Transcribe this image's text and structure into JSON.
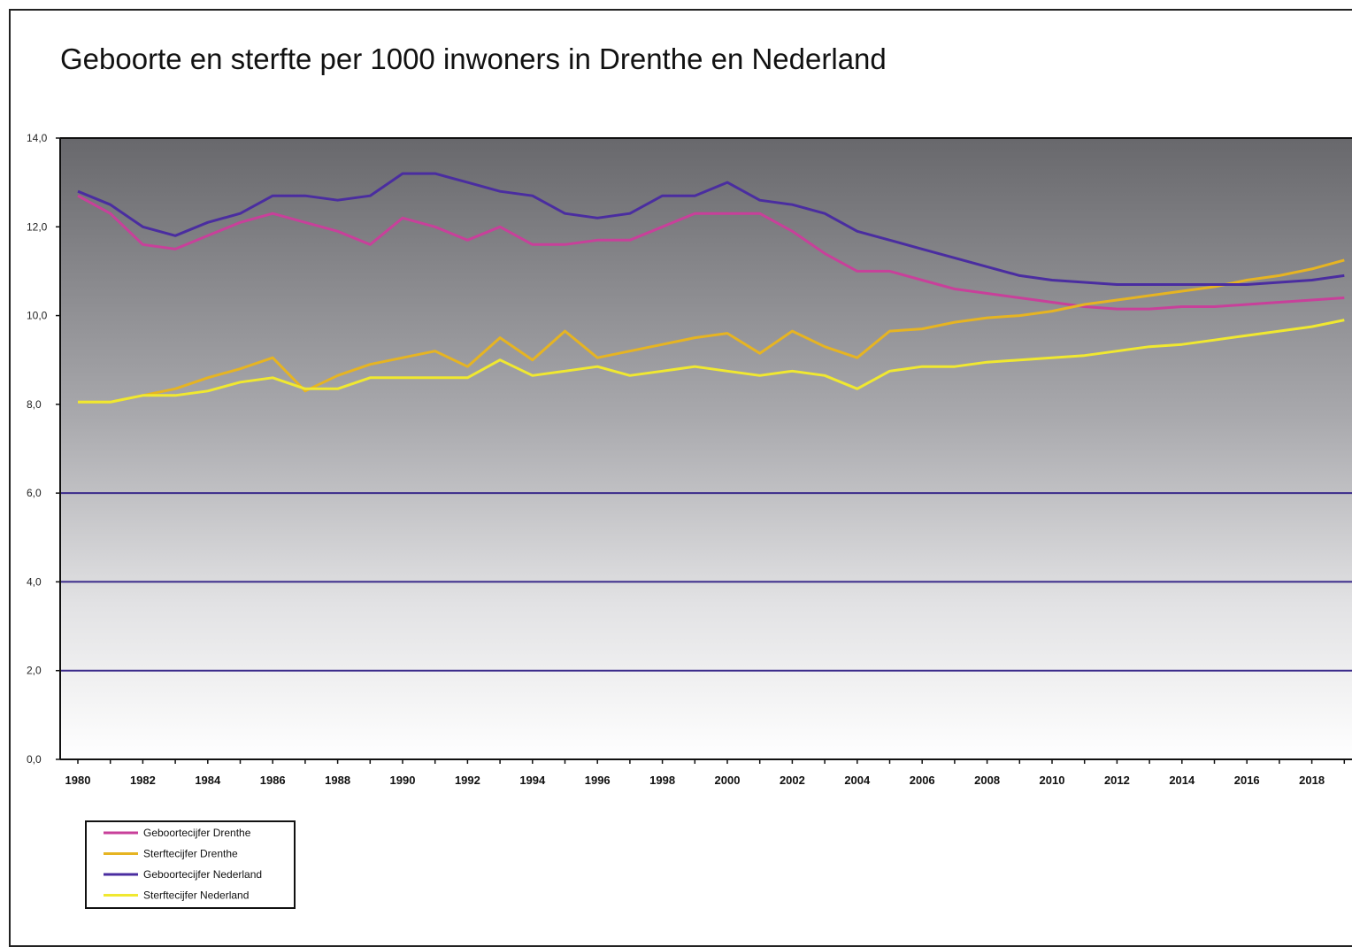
{
  "chart_data": {
    "type": "line",
    "title": "Geboorte en sterfte per 1000 inwoners in Drenthe en Nederland",
    "xlabel": "",
    "ylabel": "",
    "ylim": [
      0,
      14
    ],
    "xlim": [
      1980,
      2019
    ],
    "y_ticks": [
      "0,0",
      "2,0",
      "4,0",
      "6,0",
      "8,0",
      "10,0",
      "12,0",
      "14,0"
    ],
    "y_tick_values": [
      0,
      2,
      4,
      6,
      8,
      10,
      12,
      14
    ],
    "x_tick_labels": [
      "1980",
      "1982",
      "1984",
      "1986",
      "1988",
      "1990",
      "1992",
      "1994",
      "1996",
      "1998",
      "2000",
      "2002",
      "2004",
      "2006",
      "2008",
      "2010",
      "2012",
      "2014",
      "2016",
      "2018"
    ],
    "gridlines_y": [
      2,
      4,
      6
    ],
    "legend_position": "bottom-left",
    "x": [
      1980,
      1981,
      1982,
      1983,
      1984,
      1985,
      1986,
      1987,
      1988,
      1989,
      1990,
      1991,
      1992,
      1993,
      1994,
      1995,
      1996,
      1997,
      1998,
      1999,
      2000,
      2001,
      2002,
      2003,
      2004,
      2005,
      2006,
      2007,
      2008,
      2009,
      2010,
      2011,
      2012,
      2013,
      2014,
      2015,
      2016,
      2017,
      2018,
      2019
    ],
    "series": [
      {
        "name": "Geboortecijfer Drenthe",
        "color": "#c8409a",
        "values": [
          12.7,
          12.3,
          11.6,
          11.5,
          11.8,
          12.1,
          12.3,
          12.1,
          11.9,
          11.6,
          12.2,
          12.0,
          11.7,
          12.0,
          11.6,
          11.6,
          11.7,
          11.7,
          12.0,
          12.3,
          12.3,
          12.3,
          11.9,
          11.4,
          11.0,
          11.0,
          10.8,
          10.6,
          10.5,
          10.4,
          10.3,
          10.2,
          10.15,
          10.15,
          10.2,
          10.2,
          10.25,
          10.3,
          10.35,
          10.4
        ]
      },
      {
        "name": "Sterftecijfer Drenthe",
        "color": "#e6b422",
        "values": [
          8.05,
          8.05,
          8.2,
          8.35,
          8.6,
          8.8,
          9.05,
          8.3,
          8.65,
          8.9,
          9.05,
          9.2,
          8.85,
          9.5,
          9.0,
          9.65,
          9.05,
          9.2,
          9.35,
          9.5,
          9.6,
          9.15,
          9.65,
          9.3,
          9.05,
          9.65,
          9.7,
          9.85,
          9.95,
          10.0,
          10.1,
          10.25,
          10.35,
          10.45,
          10.55,
          10.65,
          10.8,
          10.9,
          11.05,
          11.25
        ]
      },
      {
        "name": "Geboortecijfer Nederland",
        "color": "#4a2da0",
        "values": [
          12.8,
          12.5,
          12.0,
          11.8,
          12.1,
          12.3,
          12.7,
          12.7,
          12.6,
          12.7,
          13.2,
          13.2,
          13.0,
          12.8,
          12.7,
          12.3,
          12.2,
          12.3,
          12.7,
          12.7,
          13.0,
          12.6,
          12.5,
          12.3,
          11.9,
          11.7,
          11.5,
          11.3,
          11.1,
          10.9,
          10.8,
          10.75,
          10.7,
          10.7,
          10.7,
          10.7,
          10.7,
          10.75,
          10.8,
          10.9
        ]
      },
      {
        "name": "Sterftecijfer Nederland",
        "color": "#f0e830",
        "values": [
          8.05,
          8.05,
          8.2,
          8.2,
          8.3,
          8.5,
          8.6,
          8.35,
          8.35,
          8.6,
          8.6,
          8.6,
          8.6,
          9.0,
          8.65,
          8.75,
          8.85,
          8.65,
          8.75,
          8.85,
          8.75,
          8.65,
          8.75,
          8.65,
          8.35,
          8.75,
          8.85,
          8.85,
          8.95,
          9.0,
          9.05,
          9.1,
          9.2,
          9.3,
          9.35,
          9.45,
          9.55,
          9.65,
          9.75,
          9.9
        ]
      }
    ]
  }
}
